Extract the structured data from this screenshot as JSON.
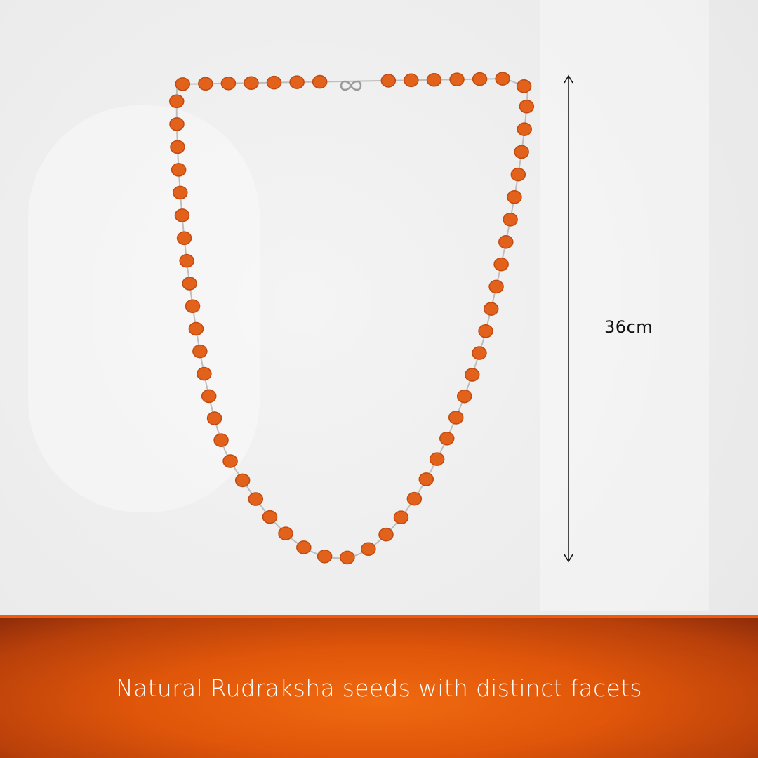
{
  "product": {
    "name": "Rudraksha bead necklace with silver caps and clasp",
    "measurement_label": "36cm",
    "caption": "Natural Rudraksha seeds with distinct facets"
  },
  "colors": {
    "bead": "#e2621c",
    "bead_dark": "#c14a10",
    "metal": "#bdbdbd",
    "banner": "#e0560a",
    "banner_line": "#f05a0a"
  }
}
